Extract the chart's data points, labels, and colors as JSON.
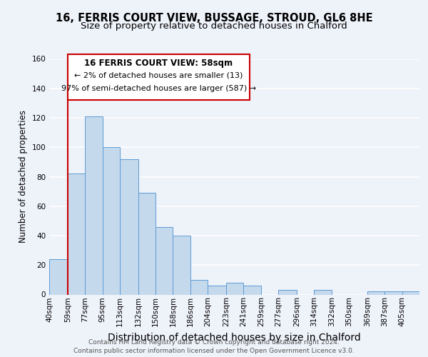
{
  "title": "16, FERRIS COURT VIEW, BUSSAGE, STROUD, GL6 8HE",
  "subtitle": "Size of property relative to detached houses in Chalford",
  "xlabel": "Distribution of detached houses by size in Chalford",
  "ylabel": "Number of detached properties",
  "bin_labels": [
    "40sqm",
    "59sqm",
    "77sqm",
    "95sqm",
    "113sqm",
    "132sqm",
    "150sqm",
    "168sqm",
    "186sqm",
    "204sqm",
    "223sqm",
    "241sqm",
    "259sqm",
    "277sqm",
    "296sqm",
    "314sqm",
    "332sqm",
    "350sqm",
    "369sqm",
    "387sqm",
    "405sqm"
  ],
  "bar_values": [
    24,
    82,
    121,
    100,
    92,
    69,
    46,
    40,
    10,
    6,
    8,
    6,
    0,
    3,
    0,
    3,
    0,
    0,
    2,
    2,
    2
  ],
  "bar_color": "#c5d9ed",
  "bar_edge_color": "#5b9bd5",
  "ylim": [
    0,
    160
  ],
  "yticks": [
    0,
    20,
    40,
    60,
    80,
    100,
    120,
    140,
    160
  ],
  "property_line_x": 59,
  "annotation_title": "16 FERRIS COURT VIEW: 58sqm",
  "annotation_line1": "← 2% of detached houses are smaller (13)",
  "annotation_line2": "97% of semi-detached houses are larger (587) →",
  "annotation_box_color": "#ffffff",
  "annotation_border_color": "#cc0000",
  "property_line_color": "#cc0000",
  "footer_line1": "Contains HM Land Registry data © Crown copyright and database right 2024.",
  "footer_line2": "Contains public sector information licensed under the Open Government Licence v3.0.",
  "background_color": "#eef2f9",
  "plot_bg_color": "#eef2f9",
  "grid_color": "#ffffff",
  "title_fontsize": 10.5,
  "subtitle_fontsize": 9.5,
  "xlabel_fontsize": 10,
  "ylabel_fontsize": 8.5,
  "tick_fontsize": 7.5,
  "footer_fontsize": 6.5,
  "ann_title_fontsize": 8.5,
  "ann_text_fontsize": 8
}
